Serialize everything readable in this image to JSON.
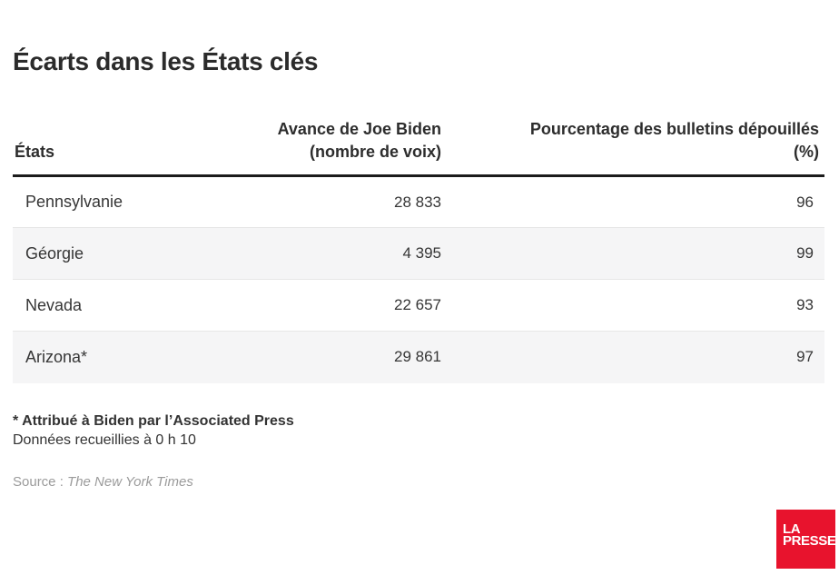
{
  "title": "Écarts dans les États clés",
  "table": {
    "header": {
      "state": "États",
      "margin_line1": "Avance de Joe Biden",
      "margin_line2": "(nombre de voix)",
      "pct_line1": "Pourcentage des bulletins dépouillés",
      "pct_line2": "(%)"
    },
    "rows": [
      {
        "state": "Pennsylvanie",
        "margin": "28 833",
        "pct": "96"
      },
      {
        "state": "Géorgie",
        "margin": "4 395",
        "pct": "99"
      },
      {
        "state": "Nevada",
        "margin": "22 657",
        "pct": "93"
      },
      {
        "state": "Arizona*",
        "margin": "29 861",
        "pct": "97"
      }
    ]
  },
  "footnotes": {
    "asterisk": "* Attribué à Biden par l’Associated Press",
    "collected": "Données recueillies à 0 h 10"
  },
  "source": {
    "label": "Source :",
    "name": "The New York Times"
  },
  "logo": {
    "line1": "LA",
    "line2": "PRESSE",
    "background": "#e8132d"
  },
  "colors": {
    "accent_red": "#e8132d",
    "header_rule": "#1c1c1c",
    "alt_row_bg": "#f5f5f6",
    "text_dark": "#2d2d2d",
    "source_gray": "#9b9b9b"
  },
  "chart_data": {
    "type": "table",
    "title": "Écarts dans les États clés",
    "columns": [
      "États",
      "Avance de Joe Biden (nombre de voix)",
      "Pourcentage des bulletins dépouillés (%)"
    ],
    "rows": [
      [
        "Pennsylvanie",
        28833,
        96
      ],
      [
        "Géorgie",
        4395,
        99
      ],
      [
        "Nevada",
        22657,
        93
      ],
      [
        "Arizona*",
        29861,
        97
      ]
    ],
    "footnote": "* Attribué à Biden par l’Associated Press",
    "note": "Données recueillies à 0 h 10",
    "source": "The New York Times",
    "layout": {
      "alternating_rows": true,
      "numeric_columns_right_aligned": true
    }
  }
}
